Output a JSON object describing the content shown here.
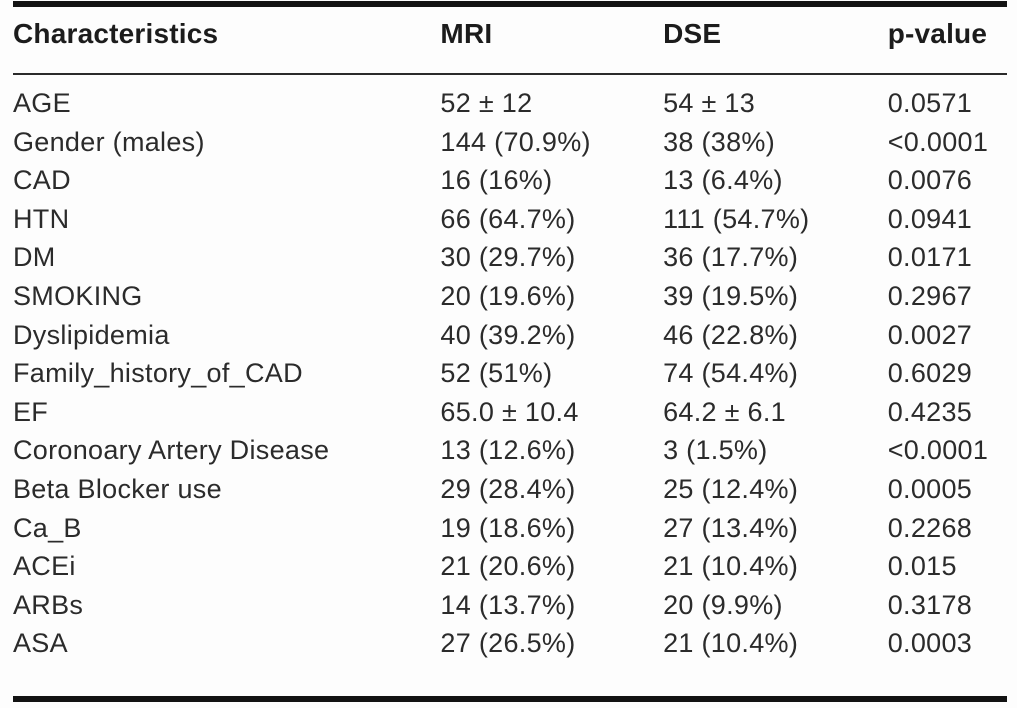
{
  "table": {
    "columns": [
      "Characteristics",
      "MRI",
      "DSE",
      "p-value"
    ],
    "rows": [
      [
        "AGE",
        "52 ± 12",
        "54 ± 13",
        "0.0571"
      ],
      [
        "Gender (males)",
        "144 (70.9%)",
        "38 (38%)",
        "<0.0001"
      ],
      [
        "CAD",
        "16 (16%)",
        "13 (6.4%)",
        "0.0076"
      ],
      [
        "HTN",
        "66 (64.7%)",
        "111 (54.7%)",
        "0.0941"
      ],
      [
        "DM",
        "30 (29.7%)",
        "36 (17.7%)",
        "0.0171"
      ],
      [
        "SMOKING",
        "20 (19.6%)",
        "39 (19.5%)",
        "0.2967"
      ],
      [
        "Dyslipidemia",
        "40 (39.2%)",
        "46 (22.8%)",
        "0.0027"
      ],
      [
        "Family_history_of_CAD",
        "52 (51%)",
        "74 (54.4%)",
        "0.6029"
      ],
      [
        "EF",
        "65.0 ± 10.4",
        "64.2 ± 6.1",
        "0.4235"
      ],
      [
        "Coronoary Artery Disease",
        "13 (12.6%)",
        "3 (1.5%)",
        "<0.0001"
      ],
      [
        "Beta Blocker use",
        "29 (28.4%)",
        "25 (12.4%)",
        "0.0005"
      ],
      [
        "Ca_B",
        "19 (18.6%)",
        "27 (13.4%)",
        "0.2268"
      ],
      [
        "ACEi",
        "21 (20.6%)",
        "21 (10.4%)",
        "0.015"
      ],
      [
        "ARBs",
        "14 (13.7%)",
        "20 (9.9%)",
        "0.3178"
      ],
      [
        "ASA",
        "27 (26.5%)",
        "21 (10.4%)",
        "0.0003"
      ]
    ],
    "cell_names": [
      "characteristic-cell",
      "mri-value-cell",
      "dse-value-cell",
      "p-value-cell"
    ],
    "colors": {
      "text": "#231f20",
      "rule": "#131313",
      "background": "#fdfdfd"
    }
  }
}
